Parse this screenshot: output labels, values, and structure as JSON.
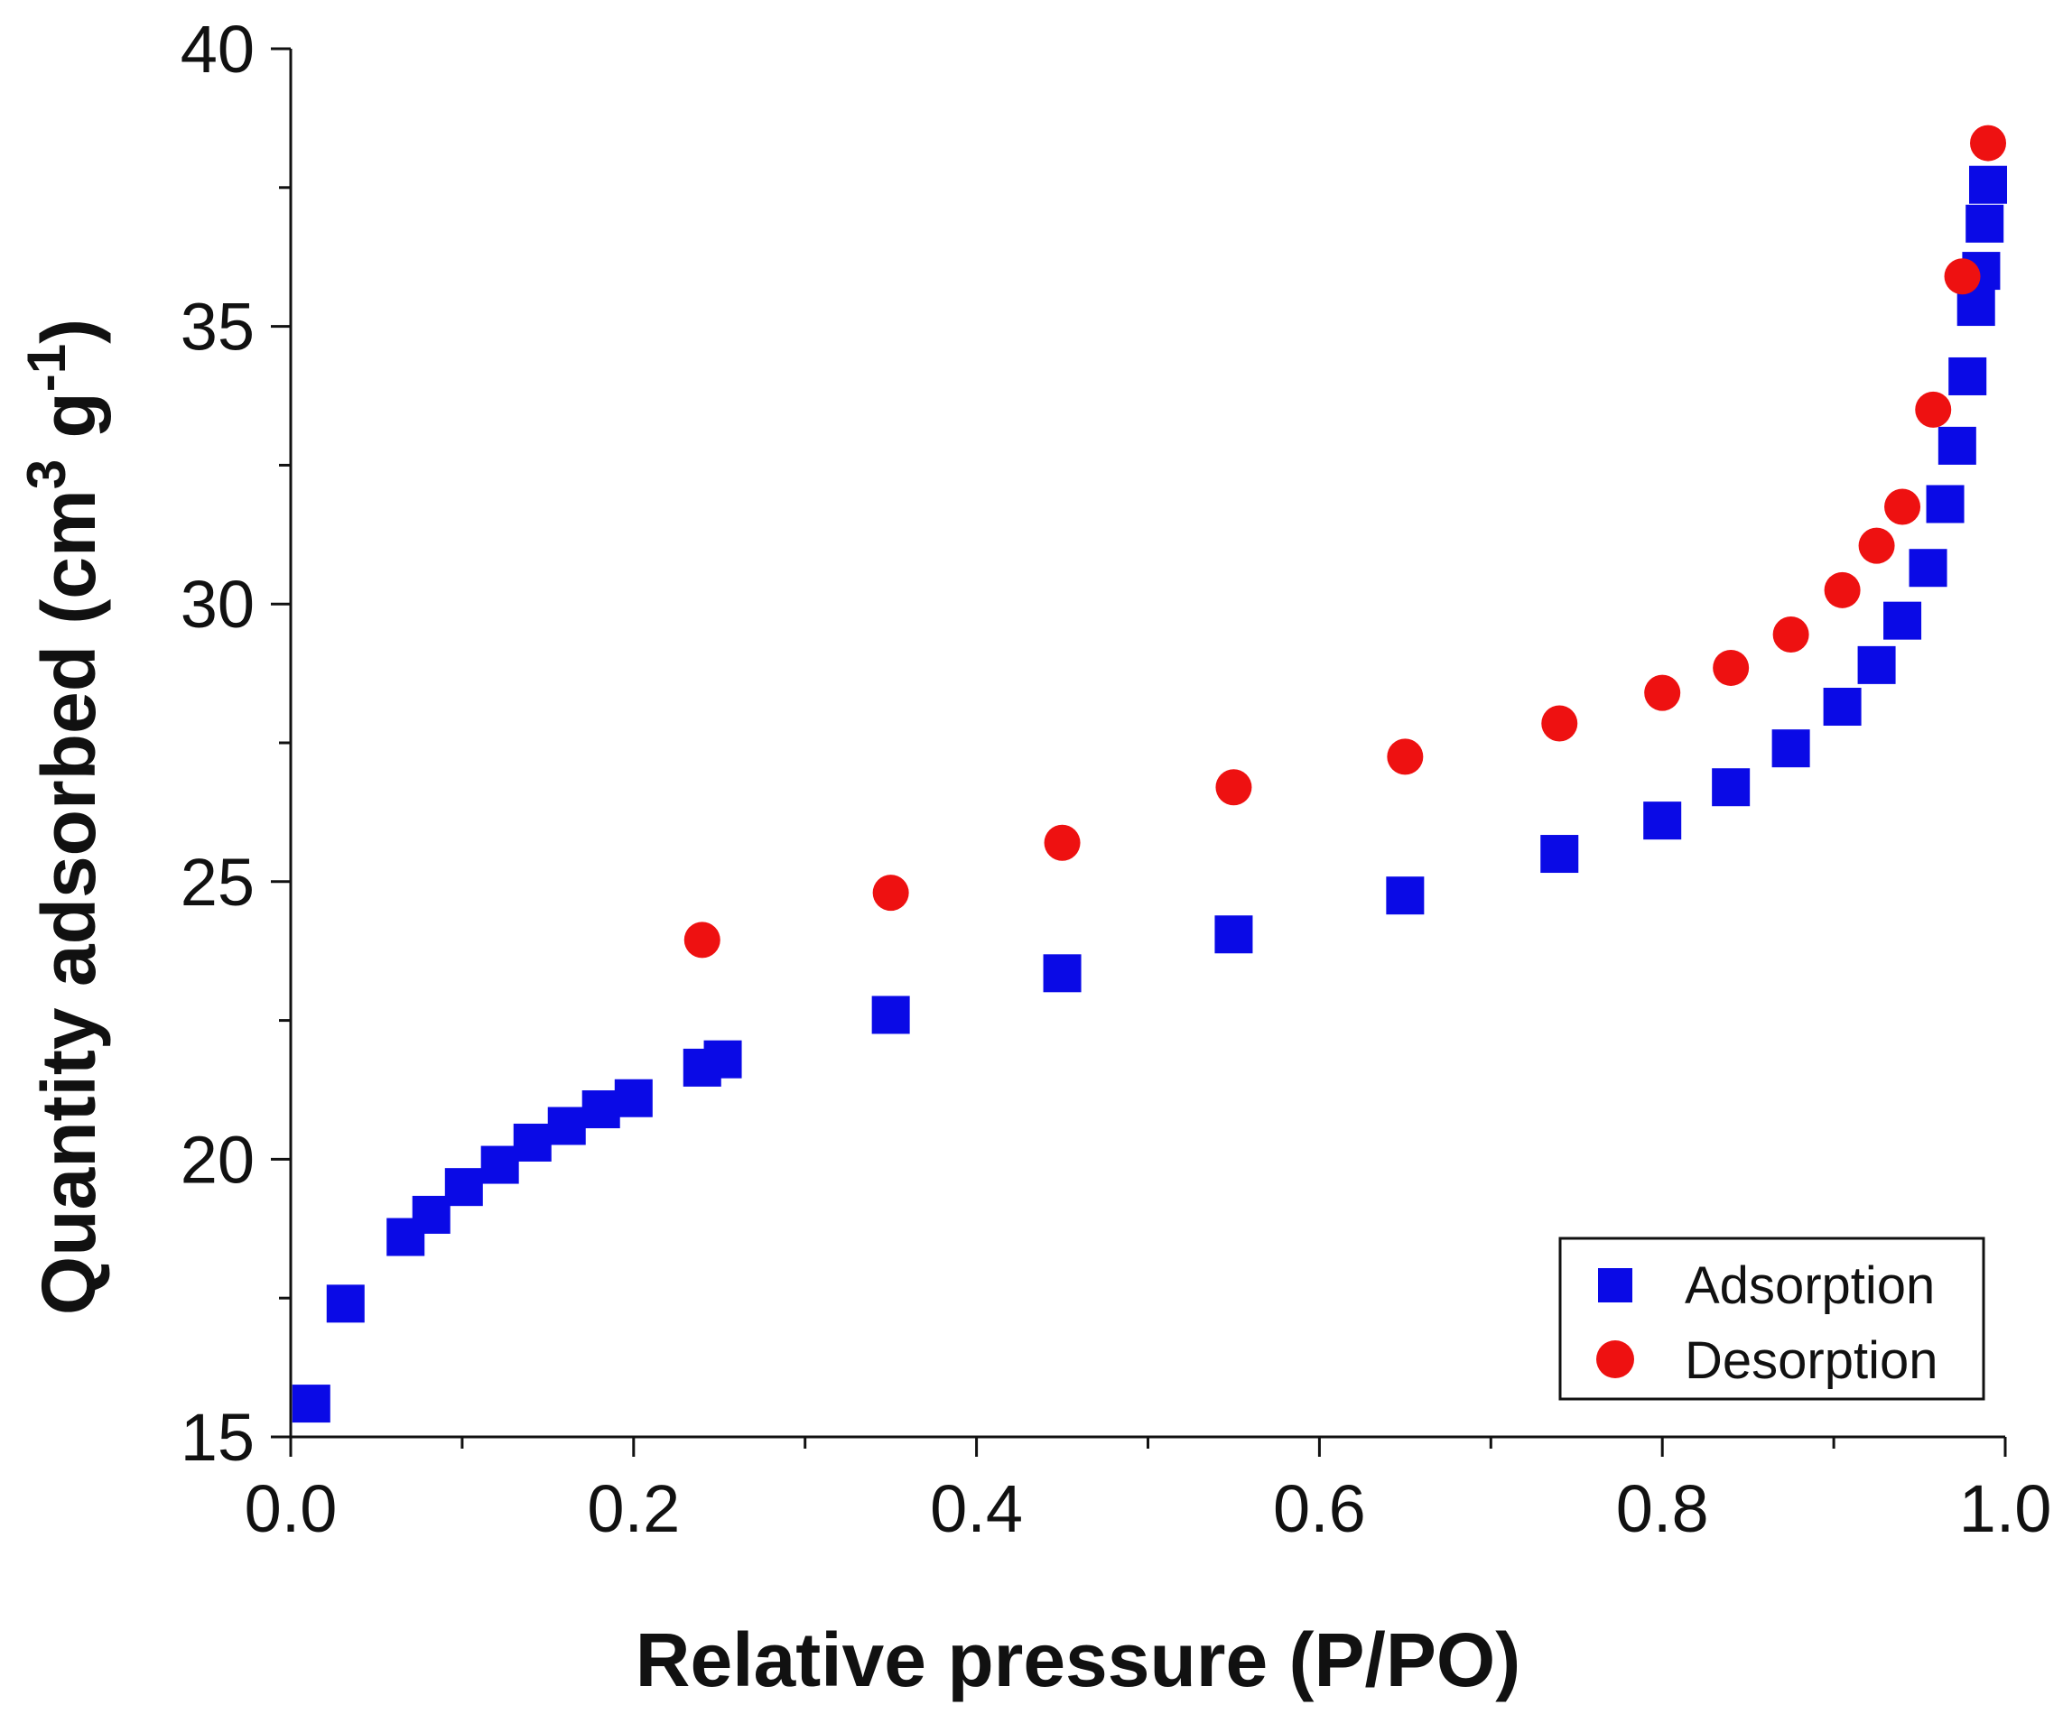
{
  "chart_data": {
    "type": "scatter",
    "title": "",
    "xlabel": "Relative pressure (P/PO)",
    "ylabel_main": "Quantity adsorbed (cm",
    "ylabel_sup1": "3",
    "ylabel_mid": " g",
    "ylabel_sup2": "-1",
    "ylabel_end": ")",
    "xlim": [
      0.0,
      1.0
    ],
    "ylim": [
      15,
      40
    ],
    "x_ticks": [
      0.0,
      0.2,
      0.4,
      0.6,
      0.8,
      1.0
    ],
    "x_tick_labels": [
      "0.0",
      "0.2",
      "0.4",
      "0.6",
      "0.8",
      "1.0"
    ],
    "x_minor_ticks": [
      0.1,
      0.3,
      0.5,
      0.7,
      0.9
    ],
    "y_ticks": [
      15,
      20,
      25,
      30,
      35,
      40
    ],
    "y_tick_labels": [
      "15",
      "20",
      "25",
      "30",
      "35",
      "40"
    ],
    "y_minor_ticks": [
      17.5,
      22.5,
      27.5,
      32.5,
      37.5
    ],
    "grid": false,
    "legend_position": "bottom-right",
    "series": [
      {
        "name": "Adsorption",
        "marker": "square",
        "color": "#0a0ae6",
        "points": [
          [
            0.012,
            15.6
          ],
          [
            0.032,
            17.4
          ],
          [
            0.067,
            18.6
          ],
          [
            0.082,
            19.0
          ],
          [
            0.101,
            19.5
          ],
          [
            0.122,
            19.9
          ],
          [
            0.141,
            20.3
          ],
          [
            0.161,
            20.6
          ],
          [
            0.181,
            20.9
          ],
          [
            0.2,
            21.1
          ],
          [
            0.24,
            21.65
          ],
          [
            0.252,
            21.8
          ],
          [
            0.35,
            22.6
          ],
          [
            0.45,
            23.35
          ],
          [
            0.55,
            24.05
          ],
          [
            0.65,
            24.75
          ],
          [
            0.74,
            25.5
          ],
          [
            0.8,
            26.1
          ],
          [
            0.84,
            26.7
          ],
          [
            0.875,
            27.4
          ],
          [
            0.905,
            28.15
          ],
          [
            0.925,
            28.9
          ],
          [
            0.94,
            29.7
          ],
          [
            0.955,
            30.65
          ],
          [
            0.965,
            31.8
          ],
          [
            0.972,
            32.85
          ],
          [
            0.978,
            34.1
          ],
          [
            0.983,
            35.35
          ],
          [
            0.986,
            36.0
          ],
          [
            0.988,
            36.85
          ],
          [
            0.99,
            37.55
          ]
        ]
      },
      {
        "name": "Desorption",
        "marker": "circle",
        "color": "#ee1111",
        "points": [
          [
            0.24,
            23.95
          ],
          [
            0.35,
            24.8
          ],
          [
            0.45,
            25.7
          ],
          [
            0.55,
            26.7
          ],
          [
            0.65,
            27.25
          ],
          [
            0.74,
            27.85
          ],
          [
            0.8,
            28.4
          ],
          [
            0.84,
            28.85
          ],
          [
            0.875,
            29.45
          ],
          [
            0.905,
            30.25
          ],
          [
            0.925,
            31.05
          ],
          [
            0.94,
            31.75
          ],
          [
            0.958,
            33.5
          ],
          [
            0.975,
            35.9
          ],
          [
            0.99,
            38.3
          ]
        ]
      }
    ]
  }
}
